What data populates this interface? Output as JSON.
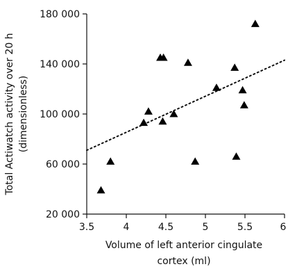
{
  "chart_data": {
    "type": "scatter",
    "title": "",
    "xlabel_lines": [
      "Volume of left anterior cingulate",
      "cortex (ml)"
    ],
    "ylabel_lines": [
      "Total Actiwatch activity over 20 h",
      "(dimensionless)"
    ],
    "xlim": [
      3.5,
      6
    ],
    "ylim": [
      20000,
      180000
    ],
    "x_ticks": [
      3.5,
      4,
      4.5,
      5,
      5.5,
      6
    ],
    "x_tick_labels": [
      "3.5",
      "4",
      "4.5",
      "5",
      "5.5",
      "6"
    ],
    "y_ticks": [
      20000,
      60000,
      100000,
      140000,
      180000
    ],
    "y_tick_labels": [
      "20 000",
      "60 000",
      "100 000",
      "140 000",
      "180 000"
    ],
    "grid": false,
    "marker": "triangle",
    "marker_color": "#000000",
    "points": [
      {
        "x": 3.68,
        "y": 39000
      },
      {
        "x": 3.8,
        "y": 62000
      },
      {
        "x": 4.22,
        "y": 93000
      },
      {
        "x": 4.28,
        "y": 102000
      },
      {
        "x": 4.43,
        "y": 145000
      },
      {
        "x": 4.47,
        "y": 145000
      },
      {
        "x": 4.46,
        "y": 94000
      },
      {
        "x": 4.6,
        "y": 100000
      },
      {
        "x": 4.78,
        "y": 141000
      },
      {
        "x": 4.87,
        "y": 62000
      },
      {
        "x": 5.14,
        "y": 121000
      },
      {
        "x": 5.37,
        "y": 137000
      },
      {
        "x": 5.39,
        "y": 66000
      },
      {
        "x": 5.47,
        "y": 119000
      },
      {
        "x": 5.49,
        "y": 107000
      },
      {
        "x": 5.63,
        "y": 172000
      }
    ],
    "trendline": {
      "style": "dotted",
      "x_start": 3.5,
      "y_start": 71000,
      "x_end": 6,
      "y_end": 143000
    }
  }
}
